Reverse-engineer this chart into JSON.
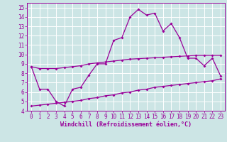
{
  "xlabel": "Windchill (Refroidissement éolien,°C)",
  "line_color": "#990099",
  "bg_color": "#cce5e5",
  "grid_color": "#ffffff",
  "x_main": [
    0,
    1,
    2,
    3,
    4,
    5,
    6,
    7,
    8,
    9,
    10,
    11,
    12,
    13,
    14,
    15,
    16,
    17,
    18,
    19,
    20,
    21,
    22,
    23
  ],
  "y_main": [
    8.7,
    6.3,
    6.3,
    5.0,
    4.5,
    6.3,
    6.5,
    7.8,
    9.0,
    9.0,
    11.5,
    11.8,
    14.0,
    14.8,
    14.2,
    14.4,
    12.5,
    13.3,
    11.8,
    9.6,
    9.6,
    8.8,
    9.6,
    7.7
  ],
  "y_upper": [
    8.7,
    8.5,
    8.5,
    8.5,
    8.6,
    8.7,
    8.8,
    9.0,
    9.1,
    9.2,
    9.3,
    9.4,
    9.5,
    9.55,
    9.6,
    9.65,
    9.7,
    9.75,
    9.8,
    9.85,
    9.9,
    9.9,
    9.9,
    9.9
  ],
  "y_lower": [
    4.5,
    4.6,
    4.7,
    4.8,
    4.9,
    5.0,
    5.1,
    5.3,
    5.4,
    5.6,
    5.7,
    5.9,
    6.0,
    6.2,
    6.3,
    6.5,
    6.6,
    6.7,
    6.8,
    6.9,
    7.0,
    7.1,
    7.2,
    7.4
  ],
  "xlim": [
    -0.5,
    23.5
  ],
  "ylim": [
    4,
    15.5
  ],
  "yticks": [
    4,
    5,
    6,
    7,
    8,
    9,
    10,
    11,
    12,
    13,
    14,
    15
  ],
  "xticks": [
    0,
    1,
    2,
    3,
    4,
    5,
    6,
    7,
    8,
    9,
    10,
    11,
    12,
    13,
    14,
    15,
    16,
    17,
    18,
    19,
    20,
    21,
    22,
    23
  ],
  "tick_fontsize": 5.5,
  "xlabel_fontsize": 6.0
}
